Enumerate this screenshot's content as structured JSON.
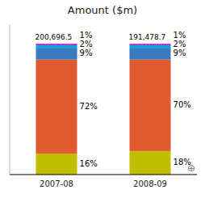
{
  "chart_data": {
    "type": "bar",
    "title": "Amount ($m)",
    "stacked": true,
    "data_labels": true,
    "tick_labels": "x",
    "categories": [
      "2007-08",
      "2008-09"
    ],
    "series": [
      {
        "color": "#bfbf00",
        "values": [
          16,
          18
        ],
        "value_labels": [
          "16%",
          "18%"
        ]
      },
      {
        "color": "#e05c30",
        "values": [
          72,
          70
        ],
        "value_labels": [
          "72%",
          "70%"
        ]
      },
      {
        "color": "#3a7abf",
        "values": [
          9,
          9
        ],
        "value_labels": [
          "9%",
          "9%"
        ]
      },
      {
        "color": "#00aadd",
        "values": [
          2,
          2
        ],
        "value_labels": [
          "2%",
          "2%"
        ]
      },
      {
        "color": "#cc00cc",
        "values": [
          1,
          1
        ],
        "value_labels": [
          "1%",
          "1%"
        ]
      }
    ],
    "totals": [
      "200,696.5",
      "191,478.7"
    ],
    "annotations": [
      "⊕"
    ],
    "ylim": [
      0,
      115
    ]
  }
}
